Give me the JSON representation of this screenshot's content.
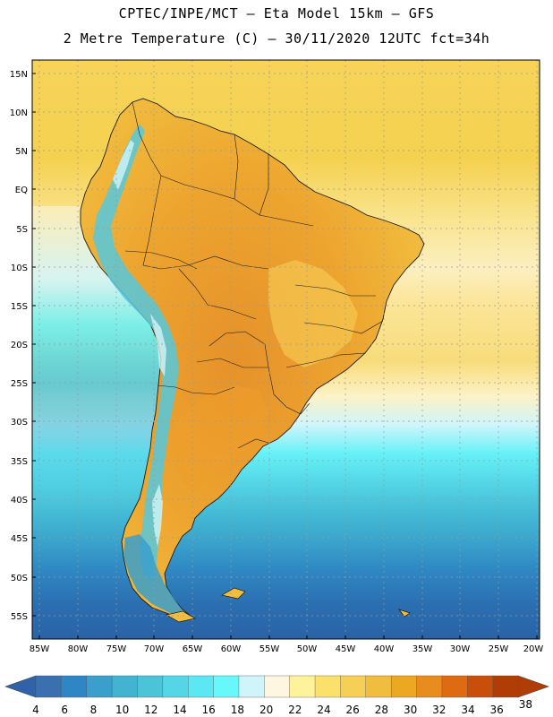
{
  "header": {
    "title_line1": "CPTEC/INPE/MCT –  Eta Model 15km – GFS",
    "title_line2": "2 Metre Temperature (C) – 30/11/2020 12UTC fct=34h"
  },
  "map": {
    "variable": "2 Metre Temperature",
    "units": "C",
    "lon_range": [
      -86,
      -19
    ],
    "lat_range": [
      -58,
      17
    ],
    "lat_ticks": [
      "15N",
      "10N",
      "5N",
      "EQ",
      "5S",
      "10S",
      "15S",
      "20S",
      "25S",
      "30S",
      "35S",
      "40S",
      "45S",
      "50S",
      "55S"
    ],
    "lat_values": [
      15,
      10,
      5,
      0,
      -5,
      -10,
      -15,
      -20,
      -25,
      -30,
      -35,
      -40,
      -45,
      -50,
      -55
    ],
    "lon_ticks": [
      "85W",
      "80W",
      "75W",
      "70W",
      "65W",
      "60W",
      "55W",
      "50W",
      "45W",
      "40W",
      "35W",
      "30W",
      "25W",
      "20W"
    ],
    "lon_values": [
      -85,
      -80,
      -75,
      -70,
      -65,
      -60,
      -55,
      -50,
      -45,
      -40,
      -35,
      -30,
      -25,
      -20
    ]
  },
  "colorbar": {
    "labels": [
      "4",
      "6",
      "8",
      "10",
      "12",
      "14",
      "16",
      "18",
      "20",
      "22",
      "24",
      "26",
      "28",
      "30",
      "32",
      "34",
      "36",
      "38"
    ],
    "colors": [
      "#3a6fb0",
      "#2f86c4",
      "#3a9fcb",
      "#42b4d2",
      "#4cc4d8",
      "#55d6e6",
      "#5be8f2",
      "#66f8fb",
      "#cff5fb",
      "#fff6e2",
      "#fef39b",
      "#fbe06a",
      "#f6cf57",
      "#f1bd3f",
      "#eda822",
      "#e88c1f",
      "#de6a12",
      "#c84e0a",
      "#b03d06"
    ],
    "arrow_left_color": "#2f62a8",
    "arrow_right_color": "#b03d06"
  },
  "colors": {
    "ocean_north": "#f5d24e",
    "ocean_south_deep": "#2e6aa8",
    "land_hot": "#e9a02c",
    "land_warm": "#f1c04a",
    "andes_cold": "#56c8dd",
    "grid": "#9a9a9a"
  }
}
